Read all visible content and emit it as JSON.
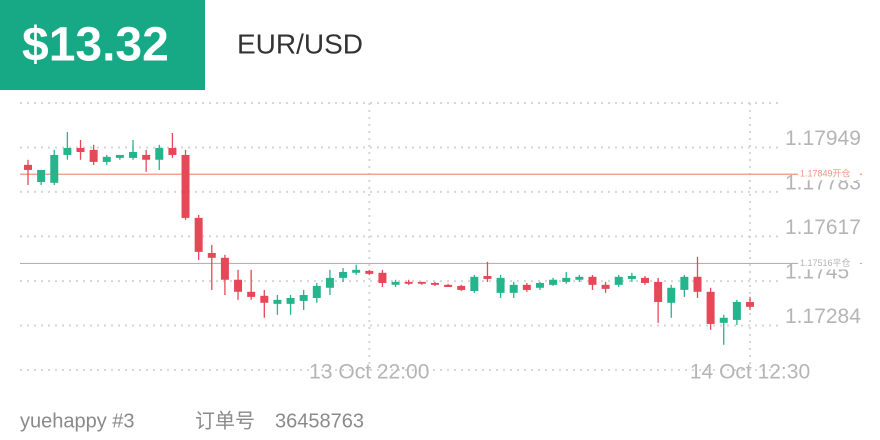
{
  "chart_data": {
    "type": "candlestick",
    "price_label": "$13.32",
    "symbol": "EUR/USD",
    "categories": [
      null,
      null,
      null,
      null,
      null,
      null,
      null,
      null,
      null,
      null,
      null,
      null,
      null,
      null,
      null,
      null,
      null,
      null,
      null,
      null,
      null,
      null,
      null,
      null,
      null,
      null,
      "13 Oct 22:00",
      null,
      null,
      null,
      null,
      null,
      null,
      null,
      null,
      null,
      null,
      null,
      null,
      null,
      null,
      null,
      null,
      null,
      null,
      null,
      null,
      null,
      null,
      null,
      null,
      null,
      null,
      null,
      null,
      "14 Oct 12:30"
    ],
    "open": [
      1.17884,
      1.1782,
      1.17817,
      1.17921,
      1.17947,
      1.1794,
      1.17895,
      1.1791,
      1.1791,
      1.17921,
      1.17903,
      1.17947,
      1.17921,
      1.17686,
      1.17555,
      1.17537,
      1.17455,
      1.1741,
      1.17395,
      1.17365,
      1.17365,
      1.17376,
      1.17387,
      1.17425,
      1.17462,
      1.17481,
      1.17488,
      1.17481,
      1.17436,
      1.17447,
      1.17447,
      1.17443,
      1.17436,
      1.17432,
      1.17413,
      1.17469,
      1.17406,
      1.17406,
      1.17436,
      1.17425,
      1.17436,
      1.17447,
      1.17455,
      1.17466,
      1.17436,
      1.17436,
      1.17458,
      1.17462,
      1.17447,
      1.17369,
      1.17417,
      1.17466,
      1.1741,
      1.17294,
      1.17305,
      1.17372
    ],
    "high": [
      1.17903,
      1.17865,
      1.1794,
      1.18007,
      1.17977,
      1.17959,
      1.17921,
      1.17921,
      1.17977,
      1.1794,
      1.17959,
      1.18003,
      1.1794,
      1.17697,
      1.17585,
      1.17548,
      1.17492,
      1.17492,
      1.17417,
      1.17398,
      1.17398,
      1.17417,
      1.17443,
      1.17492,
      1.17499,
      1.17511,
      1.17492,
      1.17492,
      1.17455,
      1.17455,
      1.17447,
      1.17447,
      1.1744,
      1.17436,
      1.17473,
      1.17522,
      1.17473,
      1.17447,
      1.17443,
      1.17447,
      1.17462,
      1.17484,
      1.17473,
      1.17473,
      1.17447,
      1.17473,
      1.17481,
      1.17469,
      1.17462,
      1.17436,
      1.17473,
      1.1754,
      1.17425,
      1.17324,
      1.1738,
      1.17391
    ],
    "low": [
      1.17809,
      1.17809,
      1.17809,
      1.17903,
      1.17903,
      1.17884,
      1.17884,
      1.17903,
      1.17903,
      1.17858,
      1.17865,
      1.1791,
      1.17679,
      1.17529,
      1.17417,
      1.17398,
      1.1738,
      1.1738,
      1.17313,
      1.17324,
      1.17324,
      1.17342,
      1.17369,
      1.17398,
      1.17447,
      1.17473,
      1.17473,
      1.17428,
      1.17428,
      1.17436,
      1.17436,
      1.17432,
      1.17428,
      1.17413,
      1.17406,
      1.17447,
      1.17387,
      1.17387,
      1.1741,
      1.17417,
      1.17432,
      1.1744,
      1.17447,
      1.17417,
      1.17406,
      1.17428,
      1.17447,
      1.17436,
      1.17294,
      1.17313,
      1.17391,
      1.17387,
      1.17268,
      1.17212,
      1.17286,
      1.17342
    ],
    "close": [
      1.17865,
      1.17865,
      1.17921,
      1.17947,
      1.17932,
      1.17895,
      1.17914,
      1.17921,
      1.17932,
      1.17903,
      1.17947,
      1.17921,
      1.17686,
      1.17559,
      1.17537,
      1.17455,
      1.1741,
      1.17391,
      1.17369,
      1.1738,
      1.17387,
      1.17398,
      1.17432,
      1.17462,
      1.17484,
      1.17492,
      1.17477,
      1.17443,
      1.17447,
      1.1744,
      1.1744,
      1.17436,
      1.17428,
      1.17417,
      1.17466,
      1.17458,
      1.17462,
      1.17436,
      1.17417,
      1.17443,
      1.17455,
      1.17462,
      1.17466,
      1.17436,
      1.17421,
      1.17466,
      1.17469,
      1.17443,
      1.17372,
      1.17425,
      1.17466,
      1.1741,
      1.1729,
      1.17313,
      1.17372,
      1.17354
    ],
    "up_color": "#26b48c",
    "down_color": "#e64858",
    "ylim": [
      1.17118,
      1.18115
    ],
    "yticks": [
      1.17284,
      1.1745,
      1.17617,
      1.17783,
      1.17949
    ],
    "grid": true,
    "reference_lines": [
      {
        "value": 1.17849,
        "label": "1.17849开仓",
        "color": "#f3957e"
      },
      {
        "value": 1.17516,
        "label": "1.17516平仓",
        "color": "#b3b3b3"
      }
    ],
    "footer": {
      "account": "yuehappy #3",
      "order_label": "订单号",
      "order_id": "36458763"
    }
  }
}
